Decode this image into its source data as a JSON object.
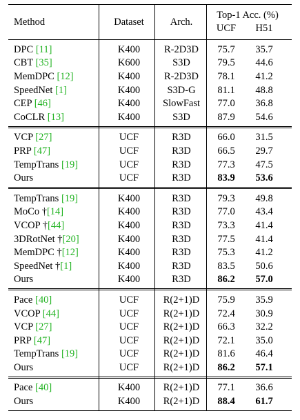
{
  "header": {
    "method": "Method",
    "dataset": "Dataset",
    "arch": "Arch.",
    "top1": "Top-1 Acc. (%)",
    "ucf": "UCF",
    "h51": "H51"
  },
  "groups": [
    {
      "rows": [
        {
          "name": "DPC ",
          "cite": "[11]",
          "dagger": "",
          "dataset": "K400",
          "arch": "R-2D3D",
          "ucf": "75.7",
          "h51": "35.7",
          "bold": false
        },
        {
          "name": "CBT ",
          "cite": "[35]",
          "dagger": "",
          "dataset": "K600",
          "arch": "S3D",
          "ucf": "79.5",
          "h51": "44.6",
          "bold": false
        },
        {
          "name": "MemDPC ",
          "cite": "[12]",
          "dagger": "",
          "dataset": "K400",
          "arch": "R-2D3D",
          "ucf": "78.1",
          "h51": "41.2",
          "bold": false
        },
        {
          "name": "SpeedNet ",
          "cite": "[1]",
          "dagger": "",
          "dataset": "K400",
          "arch": "S3D-G",
          "ucf": "81.1",
          "h51": "48.8",
          "bold": false
        },
        {
          "name": "CEP ",
          "cite": "[46]",
          "dagger": "",
          "dataset": "K400",
          "arch": "SlowFast",
          "ucf": "77.0",
          "h51": "36.8",
          "bold": false
        },
        {
          "name": "CoCLR ",
          "cite": "[13]",
          "dagger": "",
          "dataset": "K400",
          "arch": "S3D",
          "ucf": "87.9",
          "h51": "54.6",
          "bold": false
        }
      ]
    },
    {
      "rows": [
        {
          "name": "VCP ",
          "cite": "[27]",
          "dagger": "",
          "dataset": "UCF",
          "arch": "R3D",
          "ucf": "66.0",
          "h51": "31.5",
          "bold": false
        },
        {
          "name": "PRP ",
          "cite": "[47]",
          "dagger": "",
          "dataset": "UCF",
          "arch": "R3D",
          "ucf": "66.5",
          "h51": "29.7",
          "bold": false
        },
        {
          "name": "TempTrans ",
          "cite": "[19]",
          "dagger": "",
          "dataset": "UCF",
          "arch": "R3D",
          "ucf": "77.3",
          "h51": "47.5",
          "bold": false
        },
        {
          "name": "Ours",
          "cite": "",
          "dagger": "",
          "dataset": "UCF",
          "arch": "R3D",
          "ucf": "83.9",
          "h51": "53.6",
          "bold": true
        }
      ]
    },
    {
      "rows": [
        {
          "name": "TempTrans ",
          "cite": "[19]",
          "dagger": "",
          "dataset": "K400",
          "arch": "R3D",
          "ucf": "79.3",
          "h51": "49.8",
          "bold": false
        },
        {
          "name": "MoCo ",
          "cite": "[14]",
          "dagger": "†",
          "dataset": "K400",
          "arch": "R3D",
          "ucf": "77.0",
          "h51": "43.4",
          "bold": false
        },
        {
          "name": "VCOP ",
          "cite": "[44]",
          "dagger": "†",
          "dataset": "K400",
          "arch": "R3D",
          "ucf": "73.3",
          "h51": "41.4",
          "bold": false
        },
        {
          "name": "3DRotNet ",
          "cite": "[20]",
          "dagger": "†",
          "dataset": "K400",
          "arch": "R3D",
          "ucf": "77.5",
          "h51": "41.4",
          "bold": false
        },
        {
          "name": "MemDPC ",
          "cite": "[12]",
          "dagger": "†",
          "dataset": "K400",
          "arch": "R3D",
          "ucf": "75.3",
          "h51": "41.2",
          "bold": false
        },
        {
          "name": "SpeedNet ",
          "cite": "[1]",
          "dagger": "†",
          "dataset": "K400",
          "arch": "R3D",
          "ucf": "83.5",
          "h51": "50.6",
          "bold": false
        },
        {
          "name": "Ours",
          "cite": "",
          "dagger": "",
          "dataset": "K400",
          "arch": "R3D",
          "ucf": "86.2",
          "h51": "57.0",
          "bold": true
        }
      ]
    },
    {
      "rows": [
        {
          "name": "Pace ",
          "cite": "[40]",
          "dagger": "",
          "dataset": "UCF",
          "arch": "R(2+1)D",
          "ucf": "75.9",
          "h51": "35.9",
          "bold": false
        },
        {
          "name": "VCOP ",
          "cite": "[44]",
          "dagger": "",
          "dataset": "UCF",
          "arch": "R(2+1)D",
          "ucf": "72.4",
          "h51": "30.9",
          "bold": false
        },
        {
          "name": "VCP ",
          "cite": "[27]",
          "dagger": "",
          "dataset": "UCF",
          "arch": "R(2+1)D",
          "ucf": "66.3",
          "h51": "32.2",
          "bold": false
        },
        {
          "name": "PRP ",
          "cite": "[47]",
          "dagger": "",
          "dataset": "UCF",
          "arch": "R(2+1)D",
          "ucf": "72.1",
          "h51": "35.0",
          "bold": false
        },
        {
          "name": "TempTrans ",
          "cite": "[19]",
          "dagger": "",
          "dataset": "UCF",
          "arch": "R(2+1)D",
          "ucf": "81.6",
          "h51": "46.4",
          "bold": false
        },
        {
          "name": "Ours",
          "cite": "",
          "dagger": "",
          "dataset": "UCF",
          "arch": "R(2+1)D",
          "ucf": "86.2",
          "h51": "57.1",
          "bold": true
        }
      ]
    },
    {
      "rows": [
        {
          "name": "Pace ",
          "cite": "[40]",
          "dagger": "",
          "dataset": "K400",
          "arch": "R(2+1)D",
          "ucf": "77.1",
          "h51": "36.6",
          "bold": false
        },
        {
          "name": "Ours",
          "cite": "",
          "dagger": "",
          "dataset": "K400",
          "arch": "R(2+1)D",
          "ucf": "88.4",
          "h51": "61.7",
          "bold": true
        }
      ]
    }
  ],
  "colors": {
    "text": "#000000",
    "citation": "#22b322",
    "background": "#ffffff"
  }
}
